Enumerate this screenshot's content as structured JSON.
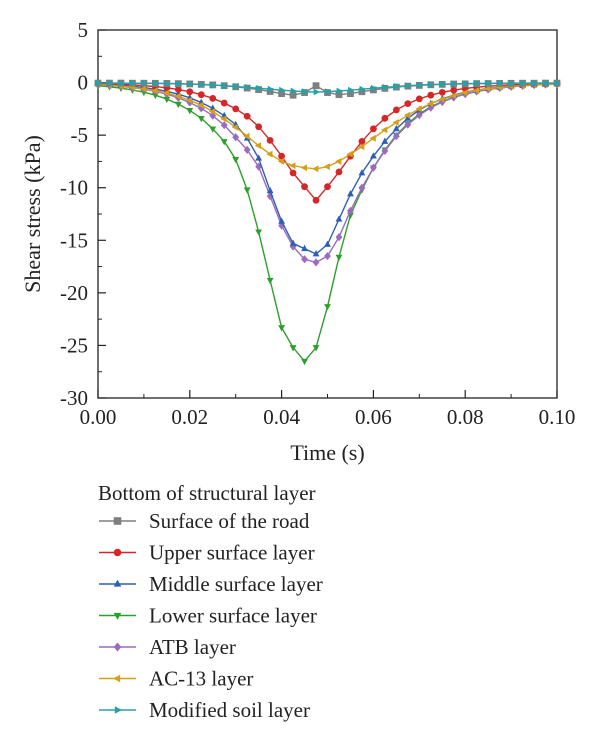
{
  "chart_data": {
    "type": "line",
    "title": "",
    "xlabel": "Time (s)",
    "ylabel": "Shear stress (kPa)",
    "xlim": [
      0,
      0.1
    ],
    "ylim": [
      -30,
      5
    ],
    "x_ticks": [
      0,
      0.02,
      0.04,
      0.06,
      0.08,
      0.1
    ],
    "x_tick_labels": [
      "0.00",
      "0.02",
      "0.04",
      "0.06",
      "0.08",
      "0.10"
    ],
    "y_ticks": [
      5,
      0,
      -5,
      -10,
      -15,
      -20,
      -25,
      -30
    ],
    "y_tick_labels": [
      "5",
      "0",
      "-5",
      "-10",
      "-15",
      "-20",
      "-25",
      "-30"
    ],
    "grid": false,
    "legend": {
      "title": "Bottom of structural layer",
      "placement": "below"
    },
    "x": [
      0,
      0.0025,
      0.005,
      0.0075,
      0.01,
      0.0125,
      0.015,
      0.0175,
      0.02,
      0.0225,
      0.025,
      0.0275,
      0.03,
      0.0325,
      0.035,
      0.0375,
      0.04,
      0.0425,
      0.045,
      0.0475,
      0.05,
      0.0525,
      0.055,
      0.0575,
      0.06,
      0.0625,
      0.065,
      0.0675,
      0.07,
      0.0725,
      0.075,
      0.0775,
      0.08,
      0.0825,
      0.085,
      0.0875,
      0.09,
      0.0925,
      0.095,
      0.0975,
      0.1
    ],
    "series": [
      {
        "name": "Surface of the road",
        "color": "#7f7f7f",
        "marker": "square",
        "values": [
          -0.05,
          -0.05,
          -0.05,
          -0.06,
          -0.06,
          -0.07,
          -0.08,
          -0.1,
          -0.13,
          -0.17,
          -0.22,
          -0.3,
          -0.4,
          -0.52,
          -0.67,
          -0.85,
          -1.05,
          -1.2,
          -0.95,
          -0.3,
          -0.95,
          -1.15,
          -1.05,
          -0.87,
          -0.7,
          -0.55,
          -0.43,
          -0.34,
          -0.27,
          -0.21,
          -0.17,
          -0.14,
          -0.12,
          -0.1,
          -0.09,
          -0.08,
          -0.07,
          -0.06,
          -0.06,
          -0.05,
          -0.05
        ]
      },
      {
        "name": "Upper surface layer",
        "color": "#d62728",
        "marker": "circle",
        "values": [
          -0.1,
          -0.13,
          -0.17,
          -0.22,
          -0.29,
          -0.38,
          -0.5,
          -0.66,
          -0.87,
          -1.15,
          -1.5,
          -1.95,
          -2.5,
          -3.2,
          -4.2,
          -5.5,
          -7.0,
          -8.6,
          -9.9,
          -11.2,
          -9.9,
          -8.5,
          -7.0,
          -5.6,
          -4.4,
          -3.4,
          -2.6,
          -2.0,
          -1.55,
          -1.2,
          -0.93,
          -0.72,
          -0.56,
          -0.44,
          -0.35,
          -0.28,
          -0.22,
          -0.18,
          -0.15,
          -0.12,
          -0.1
        ]
      },
      {
        "name": "Middle surface layer",
        "color": "#2e5fb4",
        "marker": "triangle-up",
        "values": [
          -0.15,
          -0.2,
          -0.27,
          -0.36,
          -0.48,
          -0.63,
          -0.83,
          -1.1,
          -1.45,
          -1.9,
          -2.45,
          -3.15,
          -4.0,
          -5.3,
          -7.2,
          -10.3,
          -13.2,
          -15.3,
          -15.8,
          -16.3,
          -15.4,
          -13.0,
          -10.6,
          -8.6,
          -7.0,
          -5.6,
          -4.4,
          -3.4,
          -2.6,
          -2.0,
          -1.55,
          -1.2,
          -0.92,
          -0.72,
          -0.56,
          -0.44,
          -0.35,
          -0.28,
          -0.22,
          -0.18,
          -0.14
        ]
      },
      {
        "name": "Lower surface layer",
        "color": "#2ca02c",
        "marker": "triangle-down",
        "values": [
          -0.3,
          -0.4,
          -0.53,
          -0.7,
          -0.92,
          -1.2,
          -1.57,
          -2.05,
          -2.65,
          -3.4,
          -4.4,
          -5.6,
          -7.3,
          -10.2,
          -14.2,
          -18.8,
          -23.3,
          -25.2,
          -26.5,
          -25.2,
          -21.3,
          -16.6,
          -12.6,
          -10.2,
          -8.1,
          -6.4,
          -5.0,
          -3.9,
          -3.0,
          -2.3,
          -1.8,
          -1.4,
          -1.1,
          -0.85,
          -0.66,
          -0.51,
          -0.4,
          -0.31,
          -0.24,
          -0.19,
          -0.15
        ]
      },
      {
        "name": "ATB layer",
        "color": "#9b6bbf",
        "marker": "diamond",
        "values": [
          -0.2,
          -0.27,
          -0.36,
          -0.48,
          -0.63,
          -0.83,
          -1.1,
          -1.45,
          -1.9,
          -2.45,
          -3.15,
          -4.05,
          -5.2,
          -6.4,
          -8.0,
          -10.8,
          -13.6,
          -15.6,
          -16.8,
          -17.1,
          -16.5,
          -14.7,
          -12.2,
          -10.0,
          -8.1,
          -6.5,
          -5.1,
          -4.0,
          -3.1,
          -2.4,
          -1.85,
          -1.42,
          -1.1,
          -0.85,
          -0.66,
          -0.51,
          -0.4,
          -0.31,
          -0.24,
          -0.19,
          -0.15
        ]
      },
      {
        "name": "AC-13 layer",
        "color": "#d4a017",
        "marker": "triangle-left",
        "values": [
          -0.2,
          -0.26,
          -0.34,
          -0.45,
          -0.59,
          -0.77,
          -1.0,
          -1.3,
          -1.68,
          -2.15,
          -2.75,
          -3.45,
          -4.25,
          -5.1,
          -6.0,
          -6.8,
          -7.5,
          -7.9,
          -8.1,
          -8.2,
          -8.0,
          -7.5,
          -6.8,
          -6.1,
          -5.3,
          -4.5,
          -3.8,
          -3.1,
          -2.5,
          -2.0,
          -1.6,
          -1.25,
          -0.97,
          -0.76,
          -0.59,
          -0.46,
          -0.36,
          -0.28,
          -0.22,
          -0.18,
          -0.15
        ]
      },
      {
        "name": "Modified soil layer",
        "color": "#23a3a8",
        "marker": "triangle-right",
        "values": [
          -0.05,
          -0.05,
          -0.06,
          -0.06,
          -0.07,
          -0.08,
          -0.1,
          -0.12,
          -0.15,
          -0.19,
          -0.24,
          -0.3,
          -0.37,
          -0.45,
          -0.54,
          -0.63,
          -0.72,
          -0.8,
          -0.86,
          -0.9,
          -0.86,
          -0.8,
          -0.72,
          -0.63,
          -0.54,
          -0.45,
          -0.37,
          -0.3,
          -0.24,
          -0.19,
          -0.15,
          -0.12,
          -0.1,
          -0.08,
          -0.07,
          -0.06,
          -0.06,
          -0.05,
          -0.05,
          -0.05,
          -0.05
        ]
      }
    ]
  }
}
